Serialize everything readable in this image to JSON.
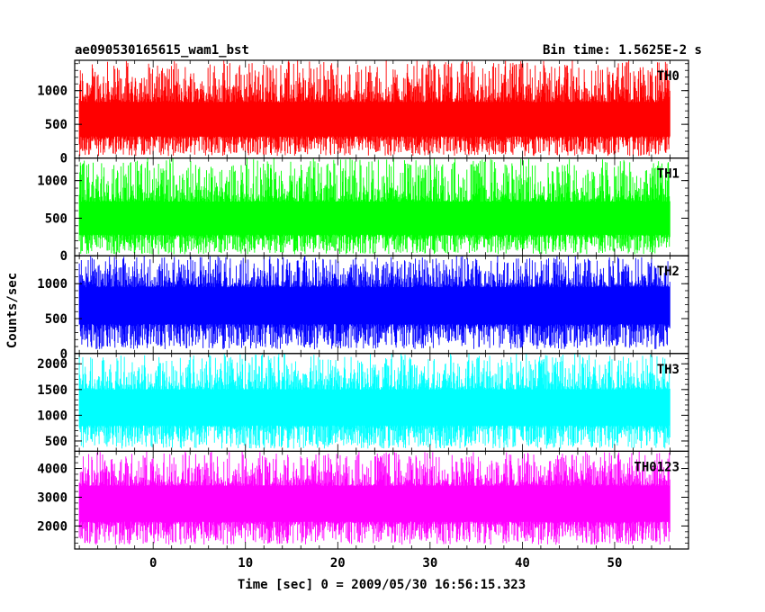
{
  "chart_data": {
    "type": "line",
    "title": "ae090530165615_wam1_bst",
    "subtitle": "Bin time: 1.5625E-2 s",
    "xlabel": "Time [sec] 0 = 2009/05/30 16:56:15.323",
    "ylabel": "Counts/sec",
    "xlim": [
      -8.5,
      58
    ],
    "x_ticks": [
      0,
      10,
      20,
      30,
      40,
      50
    ],
    "data_x_range": [
      -8,
      56
    ],
    "grid": false,
    "panels": [
      {
        "name": "TH0",
        "color": "#ff0000",
        "ylim": [
          0,
          1450
        ],
        "y_ticks": [
          0,
          500,
          1000
        ],
        "mean": 580,
        "band": [
          320,
          830
        ],
        "noise_range": [
          30,
          1450
        ]
      },
      {
        "name": "TH1",
        "color": "#00ff00",
        "ylim": [
          0,
          1300
        ],
        "y_ticks": [
          0,
          500,
          1000
        ],
        "mean": 500,
        "band": [
          280,
          720
        ],
        "noise_range": [
          20,
          1300
        ]
      },
      {
        "name": "TH2",
        "color": "#0000ff",
        "ylim": [
          0,
          1400
        ],
        "y_ticks": [
          0,
          500,
          1000
        ],
        "mean": 680,
        "band": [
          420,
          950
        ],
        "noise_range": [
          60,
          1400
        ]
      },
      {
        "name": "TH3",
        "color": "#00ffff",
        "ylim": [
          300,
          2200
        ],
        "y_ticks": [
          500,
          1000,
          1500,
          2000
        ],
        "mean": 1150,
        "band": [
          800,
          1500
        ],
        "noise_range": [
          350,
          2200
        ]
      },
      {
        "name": "TH0123",
        "color": "#ff00ff",
        "ylim": [
          1200,
          4600
        ],
        "y_ticks": [
          2000,
          3000,
          4000
        ],
        "mean": 2750,
        "band": [
          2150,
          3400
        ],
        "noise_range": [
          1350,
          4600
        ]
      }
    ]
  }
}
